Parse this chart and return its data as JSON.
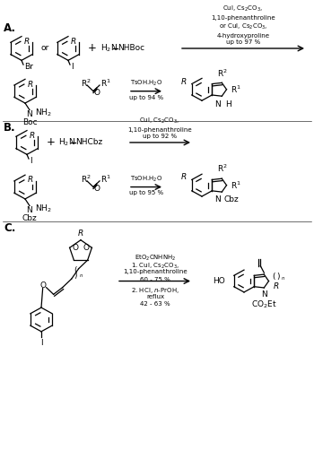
{
  "background": "#ffffff",
  "A_label": "A.",
  "B_label": "B.",
  "C_label": "C.",
  "A_cond1": "CuI, Cs$_2$CO$_3$,\n1,10-phenanthroline\nor CuI, Cs$_2$CO$_3$,\n4-hydroxyproline\nup to 97 %",
  "A_cond2_above": "TsOH.H$_2$O",
  "A_cond2_below": "up to 94 %",
  "B_cond1": "CuI, Cs$_2$CO$_3$,\n1,10-phenanthroline\nup to 92 %",
  "B_cond2_above": "TsOH.H$_2$O",
  "B_cond2_below": "up to 95 %",
  "C_cond_line1": "EtO$_2$CNHNH$_2$",
  "C_cond_line2": "1. CuI, Cs$_2$CO$_3$,",
  "C_cond_line3": "1,10-phenanthroline",
  "C_cond_line4": "60 - 75 %",
  "C_cond_line5": "2. HCl, $n$-PrOH,",
  "C_cond_line6": "reflux",
  "C_cond_line7": "42 - 63 %"
}
